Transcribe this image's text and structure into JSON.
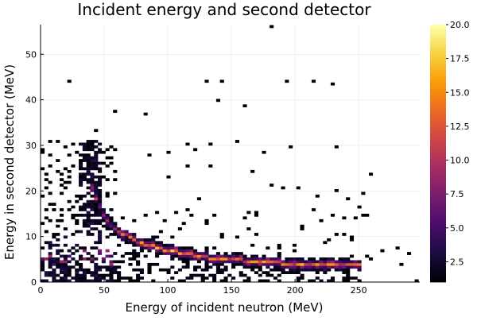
{
  "chart_data": {
    "type": "heatmap",
    "title": "Incident energy and second detector",
    "xlabel": "Energy of incident neutron (MeV)",
    "ylabel": "Energy in second detector (MeV)",
    "xlim": [
      0,
      298
    ],
    "ylim": [
      0,
      56.5
    ],
    "x_ticks": [
      0,
      50,
      100,
      150,
      200,
      250
    ],
    "y_ticks": [
      0,
      10,
      20,
      30,
      40,
      50
    ],
    "grid": true,
    "bin_width_x": 3,
    "bin_width_y": 0.6,
    "colorbar": {
      "min": 1,
      "max": 20,
      "ticks": [
        2.5,
        5.0,
        7.5,
        10.0,
        12.5,
        15.0,
        17.5,
        20.0
      ],
      "tick_labels": [
        "2.5",
        "5.0",
        "7.5",
        "10.0",
        "12.5",
        "15.0",
        "17.5",
        "20.0"
      ],
      "colormap": "inferno",
      "stops": [
        "#000004",
        "#1b0c41",
        "#4a0c6b",
        "#781c6d",
        "#a52c60",
        "#cf4446",
        "#ed6925",
        "#fb9b06",
        "#f7d13d",
        "#fcffa4"
      ]
    },
    "regions": {
      "band_points": [
        [
          40,
          22.0
        ],
        [
          45,
          18.0
        ],
        [
          50,
          15.0
        ],
        [
          55,
          13.0
        ],
        [
          60,
          11.5
        ],
        [
          70,
          10.0
        ],
        [
          80,
          8.5
        ],
        [
          90,
          7.8
        ],
        [
          100,
          7.0
        ],
        [
          110,
          6.5
        ],
        [
          120,
          6.0
        ],
        [
          130,
          5.5
        ],
        [
          140,
          5.2
        ],
        [
          150,
          5.0
        ],
        [
          160,
          4.8
        ],
        [
          175,
          4.5
        ],
        [
          190,
          4.2
        ],
        [
          210,
          4.0
        ],
        [
          230,
          3.8
        ],
        [
          250,
          3.7
        ]
      ],
      "spike_x_range": [
        30,
        48
      ],
      "spike_y_range": [
        10,
        31
      ],
      "low_cluster_x_range": [
        0,
        60
      ],
      "low_cluster_y_range": [
        0,
        10
      ],
      "isolated_points": [
        [
          21,
          43.8
        ],
        [
          129,
          43.8
        ],
        [
          141,
          43.8
        ],
        [
          193,
          44.3
        ],
        [
          214,
          43.9
        ],
        [
          229,
          43.2
        ],
        [
          138,
          39.9
        ],
        [
          160,
          38.6
        ],
        [
          57,
          37.2
        ],
        [
          81,
          37.1
        ],
        [
          182,
          56.3
        ],
        [
          42,
          33.5
        ],
        [
          116,
          30.0
        ],
        [
          122,
          29.0
        ],
        [
          134,
          30.4
        ],
        [
          153,
          31.1
        ],
        [
          195,
          29.4
        ],
        [
          232,
          29.5
        ],
        [
          86,
          28.1
        ],
        [
          100,
          28.6
        ],
        [
          175,
          28.3
        ],
        [
          114,
          25.3
        ],
        [
          134,
          25.2
        ],
        [
          167,
          24.1
        ],
        [
          253,
          19.3
        ],
        [
          258,
          23.5
        ],
        [
          101,
          23.0
        ],
        [
          180,
          21.4
        ],
        [
          191,
          20.7
        ],
        [
          203,
          20.7
        ],
        [
          233,
          20.3
        ],
        [
          216,
          18.7
        ],
        [
          240,
          18.2
        ],
        [
          123,
          18.0
        ],
        [
          237,
          14.1
        ],
        [
          135,
          14.4
        ],
        [
          168,
          14.5
        ],
        [
          279,
          7.5
        ],
        [
          268,
          7.0
        ],
        [
          290,
          6.5
        ],
        [
          283,
          3.6
        ],
        [
          296,
          0.2
        ],
        [
          258,
          5.2
        ],
        [
          238,
          10.4
        ],
        [
          224,
          8.6
        ],
        [
          206,
          11.7
        ]
      ]
    }
  }
}
